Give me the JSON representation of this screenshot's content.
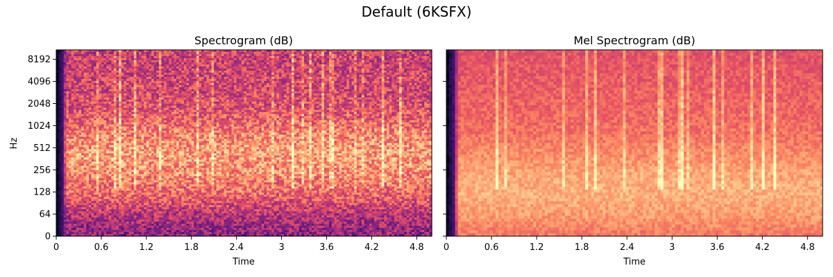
{
  "figure": {
    "title": "Default (6KSFX)"
  },
  "chart_data": [
    {
      "type": "heatmap",
      "title": "Spectrogram (dB)",
      "xlabel": "Time",
      "ylabel": "Hz",
      "xlim": [
        0,
        5.0
      ],
      "x_ticks": [
        0,
        0.6,
        1.2,
        1.8,
        2.4,
        3,
        3.6,
        4.2,
        4.8
      ],
      "x_tick_labels": [
        "0",
        "0.6",
        "1.2",
        "1.8",
        "2.4",
        "3",
        "3.6",
        "4.2",
        "4.8"
      ],
      "y_scale": "symlog",
      "y_tick_labels": [
        "0",
        "64",
        "128",
        "256",
        "512",
        "1024",
        "2048",
        "4096",
        "8192"
      ],
      "colormap": "magma",
      "intensity_profile": {
        "description": "relative brightness by frequency band",
        "bands_hz": [
          0,
          64,
          128,
          256,
          512,
          1024,
          2048,
          4096,
          8192,
          11025
        ],
        "relative_level": [
          0.4,
          0.5,
          0.68,
          0.76,
          0.8,
          0.74,
          0.62,
          0.58,
          0.56,
          0.55
        ]
      },
      "onset_time": 0.1
    },
    {
      "type": "heatmap",
      "title": "Mel Spectrogram (dB)",
      "xlabel": "Time",
      "ylabel": "",
      "xlim": [
        0,
        5.0
      ],
      "x_ticks": [
        0,
        0.6,
        1.2,
        1.8,
        2.4,
        3,
        3.6,
        4.2,
        4.8
      ],
      "x_tick_labels": [
        "0",
        "0.6",
        "1.2",
        "1.8",
        "2.4",
        "3",
        "3.6",
        "4.2",
        "4.8"
      ],
      "y_scale": "mel",
      "y_tick_labels": [],
      "colormap": "magma",
      "intensity_profile": {
        "description": "relative brightness by mel band",
        "bands_hz": [
          0,
          64,
          128,
          256,
          512,
          1024,
          2048,
          4096,
          8192,
          11025
        ],
        "relative_level": [
          0.72,
          0.8,
          0.84,
          0.82,
          0.76,
          0.7,
          0.68,
          0.66,
          0.64,
          0.62
        ]
      },
      "onset_time": 0.1
    }
  ]
}
